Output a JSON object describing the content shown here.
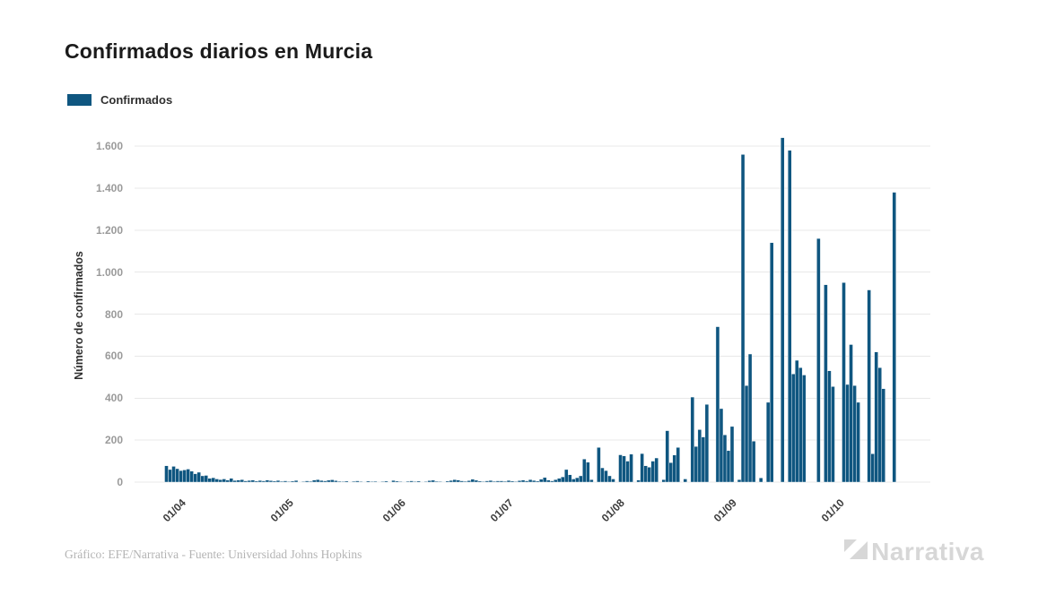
{
  "title": "Confirmados diarios en Murcia",
  "legend": {
    "label": "Confirmados",
    "color": "#0F5680"
  },
  "footer": {
    "credit": "Gráfico: EFE/Narrativa - Fuente: Universidad Johns Hopkins"
  },
  "logo": {
    "text": "Narrativa"
  },
  "chart_data": {
    "type": "bar",
    "title": "Confirmados diarios en Murcia",
    "series_name": "Confirmados",
    "xlabel": "",
    "ylabel": "Número de confirmados",
    "bar_color": "#0F5680",
    "grid": true,
    "legend_position": "top-left",
    "ylim": [
      0,
      1700
    ],
    "y_ticks": [
      {
        "value": 0,
        "label": "0"
      },
      {
        "value": 200,
        "label": "200"
      },
      {
        "value": 400,
        "label": "400"
      },
      {
        "value": 600,
        "label": "600"
      },
      {
        "value": 800,
        "label": "800"
      },
      {
        "value": 1000,
        "label": "1.000"
      },
      {
        "value": 1200,
        "label": "1.200"
      },
      {
        "value": 1400,
        "label": "1.400"
      },
      {
        "value": 1600,
        "label": "1.600"
      }
    ],
    "x_ticks": [
      {
        "index": 2,
        "label": "01/04"
      },
      {
        "index": 32,
        "label": "01/05"
      },
      {
        "index": 63,
        "label": "01/06"
      },
      {
        "index": 93,
        "label": "01/07"
      },
      {
        "index": 124,
        "label": "01/08"
      },
      {
        "index": 155,
        "label": "01/09"
      },
      {
        "index": 185,
        "label": "01/10"
      }
    ],
    "start_date": "30/03/2020",
    "frequency": "daily",
    "values": [
      78,
      60,
      75,
      64,
      55,
      58,
      62,
      52,
      40,
      47,
      30,
      32,
      18,
      21,
      15,
      12,
      15,
      10,
      18,
      8,
      10,
      12,
      6,
      8,
      10,
      5,
      8,
      6,
      10,
      7,
      5,
      8,
      4,
      6,
      3,
      5,
      8,
      2,
      3,
      6,
      4,
      10,
      12,
      8,
      6,
      9,
      11,
      7,
      4,
      3,
      5,
      2,
      4,
      6,
      3,
      2,
      5,
      3,
      4,
      2,
      3,
      5,
      2,
      8,
      5,
      3,
      2,
      4,
      6,
      3,
      5,
      2,
      3,
      7,
      9,
      4,
      3,
      2,
      5,
      8,
      12,
      10,
      6,
      4,
      7,
      14,
      9,
      5,
      3,
      6,
      8,
      4,
      6,
      6,
      4,
      8,
      5,
      3,
      7,
      10,
      6,
      12,
      8,
      5,
      14,
      22,
      10,
      6,
      12,
      18,
      25,
      60,
      35,
      15,
      21,
      30,
      110,
      95,
      12,
      0,
      165,
      68,
      55,
      30,
      15,
      0,
      130,
      125,
      100,
      133,
      0,
      10,
      136,
      78,
      71,
      100,
      115,
      0,
      12,
      245,
      93,
      129,
      165,
      0,
      15,
      0,
      405,
      170,
      250,
      215,
      370,
      0,
      0,
      740,
      350,
      225,
      150,
      265,
      0,
      12,
      1560,
      460,
      610,
      195,
      0,
      20,
      0,
      380,
      1140,
      0,
      0,
      1640,
      0,
      1580,
      515,
      580,
      545,
      510,
      0,
      0,
      0,
      1160,
      0,
      940,
      530,
      455,
      0,
      0,
      950,
      465,
      655,
      460,
      380,
      0,
      0,
      915,
      135,
      620,
      545,
      445,
      0,
      0,
      1380
    ]
  }
}
